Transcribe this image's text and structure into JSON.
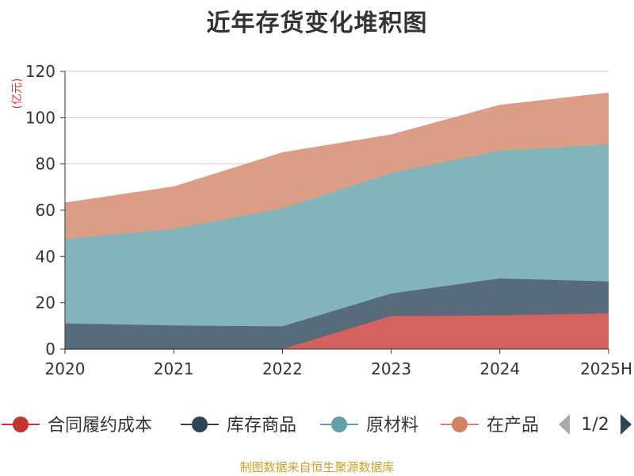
{
  "title": "近年存货变化堆积图",
  "source_note": "制图数据来自恒生聚源数据库",
  "legend": {
    "items": [
      "合同履约成本",
      "库存商品",
      "原材料",
      "在产品"
    ],
    "page_indicator": "1/2"
  },
  "colors": {
    "合同履约成本": "#d4625f",
    "库存商品": "#586b7a",
    "原材料": "#83b4b9",
    "在产品": "#dc9d86",
    "legend_合同履约成本": "#c23531",
    "legend_库存商品": "#2f4554",
    "legend_原材料": "#61a0a8",
    "legend_在产品": "#d48265"
  },
  "chart_data": {
    "type": "area",
    "stacked": true,
    "title": "近年存货变化堆积图",
    "ylabel": "(亿元)",
    "ylim": [
      0,
      120
    ],
    "yticks": [
      0,
      20,
      40,
      60,
      80,
      100,
      120
    ],
    "categories": [
      "2020",
      "2021",
      "2022",
      "2023",
      "2024",
      "2025H"
    ],
    "series": [
      {
        "name": "合同履约成本",
        "values": [
          0,
          0,
          0,
          14.3,
          14.6,
          15.4
        ]
      },
      {
        "name": "库存商品",
        "values": [
          11.1,
          10.2,
          9.8,
          9.7,
          15.9,
          13.8
        ]
      },
      {
        "name": "原材料",
        "values": [
          36.5,
          41.7,
          51.1,
          52.1,
          55.2,
          59.2
        ]
      },
      {
        "name": "在产品",
        "values": [
          15.5,
          18.1,
          23.9,
          16.4,
          19.6,
          22.2
        ]
      }
    ],
    "grid": true,
    "legend_position": "bottom"
  }
}
